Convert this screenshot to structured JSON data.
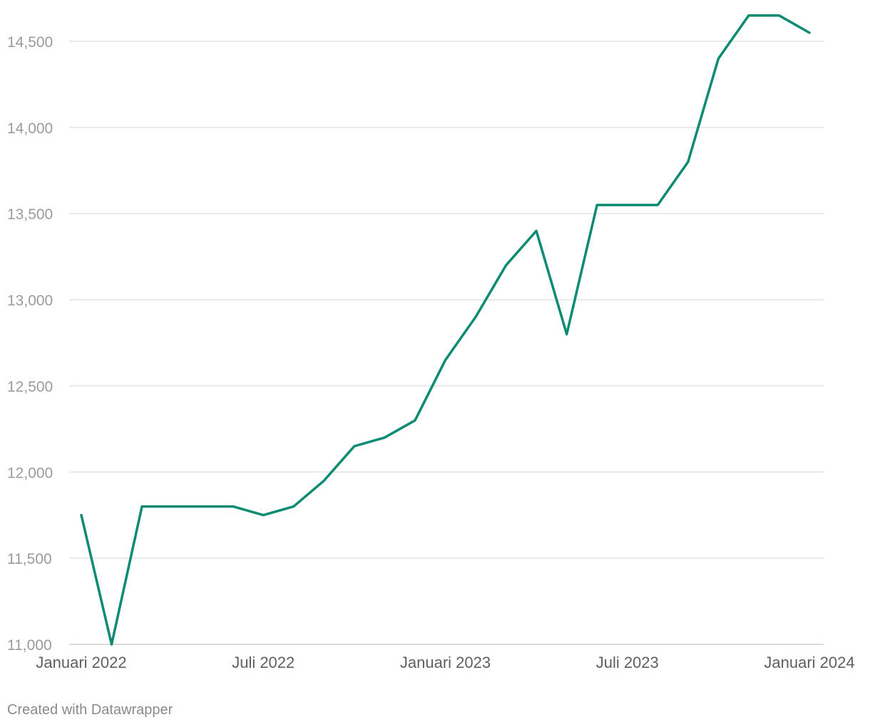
{
  "chart_data": {
    "type": "line",
    "title": "",
    "xlabel": "",
    "ylabel": "",
    "ylim": [
      11000,
      14650
    ],
    "y_ticks": [
      11000,
      11500,
      12000,
      12500,
      13000,
      13500,
      14000,
      14500
    ],
    "y_tick_labels": [
      "11,000",
      "11,500",
      "12,000",
      "12,500",
      "13,000",
      "13,500",
      "14,000",
      "14,500"
    ],
    "x_ticks": [
      {
        "label": "Januari 2022",
        "index": 0
      },
      {
        "label": "Juli 2022",
        "index": 6
      },
      {
        "label": "Januari 2023",
        "index": 12
      },
      {
        "label": "Juli 2023",
        "index": 18
      },
      {
        "label": "Januari 2024",
        "index": 24
      }
    ],
    "x": [
      "2022-01",
      "2022-02",
      "2022-03",
      "2022-04",
      "2022-05",
      "2022-06",
      "2022-07",
      "2022-08",
      "2022-09",
      "2022-10",
      "2022-11",
      "2022-12",
      "2023-01",
      "2023-02",
      "2023-03",
      "2023-04",
      "2023-05",
      "2023-06",
      "2023-07",
      "2023-08",
      "2023-09",
      "2023-10",
      "2023-11",
      "2023-12",
      "2024-01"
    ],
    "series": [
      {
        "color": "#0b8c72",
        "values": [
          11750,
          11000,
          11800,
          11800,
          11800,
          11800,
          11750,
          11800,
          11950,
          12150,
          12200,
          12300,
          12650,
          12900,
          13200,
          13400,
          12800,
          13550,
          13550,
          13550,
          13800,
          14400,
          14650,
          14650,
          14550
        ]
      }
    ],
    "grid": true,
    "legend": "none"
  },
  "footer": {
    "credit": "Created with Datawrapper"
  }
}
